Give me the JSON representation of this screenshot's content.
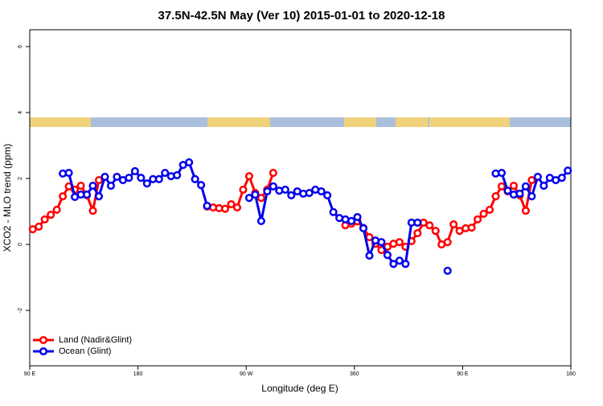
{
  "chart_data": {
    "type": "line",
    "title": "37.5N-42.5N May (Ver 10)   2015-01-01 to 2020-12-18",
    "x_label": "Longitude (deg E)",
    "y_label": "XCO2 - MLO trend (ppm)",
    "xlim": [
      90,
      540
    ],
    "ylim": [
      -3.68,
      6.51
    ],
    "xticks": [
      {
        "value": 90,
        "label": "90 E"
      },
      180,
      {
        "value": 270,
        "label": "90 W"
      },
      360,
      {
        "value": 450,
        "label": "90 E"
      },
      {
        "value": 540,
        "label": "180"
      }
    ],
    "xticks_note_free": null,
    "yticks": [
      6,
      4,
      2,
      0,
      -2
    ],
    "legend_position": "bottom-left",
    "x": [
      92.5,
      97.5,
      102.5,
      107.5,
      112.5,
      117.5,
      122.5,
      127.5,
      132.5,
      137.5,
      142.5,
      147.5,
      152.5,
      157.5,
      162.5,
      167.5,
      172.5,
      177.5,
      182.5,
      187.5,
      192.5,
      197.5,
      202.5,
      207.5,
      212.5,
      217.5,
      222.5,
      227.5,
      232.5,
      237.5,
      242.5,
      247.5,
      252.5,
      257.5,
      262.5,
      267.5,
      272.5,
      277.5,
      282.5,
      287.5,
      292.5,
      297.5,
      302.5,
      307.5,
      312.5,
      317.5,
      322.5,
      327.5,
      332.5,
      337.5,
      342.5,
      347.5,
      352.5,
      357.5,
      362.5,
      367.5,
      372.5,
      377.5,
      382.5,
      387.5,
      392.5,
      397.5,
      402.5,
      407.5,
      412.5,
      417.5,
      422.5,
      427.5,
      432.5,
      437.5,
      442.5,
      447.5,
      452.5,
      457.5,
      462.5,
      467.5,
      472.5,
      477.5,
      482.5,
      487.5,
      492.5,
      497.5,
      502.5,
      507.5,
      512.5,
      517.5,
      522.5,
      527.5,
      532.5,
      537.5
    ],
    "series": [
      {
        "name": "Land (Nadir&Glint)",
        "color": "#ff0000",
        "values": [
          0.46,
          0.54,
          0.76,
          0.9,
          1.05,
          1.46,
          1.76,
          1.66,
          1.78,
          1.49,
          1.02,
          1.95,
          null,
          null,
          null,
          null,
          null,
          null,
          null,
          null,
          null,
          null,
          null,
          null,
          null,
          null,
          null,
          null,
          null,
          1.15,
          1.12,
          1.1,
          1.08,
          1.22,
          1.12,
          1.66,
          2.07,
          1.56,
          1.41,
          1.66,
          2.17,
          null,
          null,
          null,
          null,
          null,
          null,
          null,
          null,
          null,
          null,
          null,
          0.58,
          0.63,
          0.7,
          0.5,
          0.22,
          0.02,
          -0.17,
          -0.07,
          0.02,
          0.07,
          -0.07,
          0.1,
          0.34,
          0.66,
          0.58,
          0.41,
          0.0,
          0.07,
          0.61,
          0.41,
          0.49,
          0.51,
          0.76,
          0.93,
          1.05,
          1.46,
          1.76,
          1.61,
          1.78,
          1.49,
          1.02,
          1.95,
          null,
          null,
          null,
          null,
          null,
          null
        ]
      },
      {
        "name": "Ocean (Glint)",
        "color": "#0000ee",
        "values": [
          null,
          null,
          null,
          null,
          null,
          2.15,
          2.17,
          1.44,
          1.51,
          1.51,
          1.78,
          1.46,
          2.05,
          1.78,
          2.05,
          1.95,
          2.02,
          2.22,
          2.02,
          1.85,
          1.98,
          1.98,
          2.17,
          2.07,
          2.1,
          2.41,
          2.49,
          1.98,
          1.8,
          1.17,
          null,
          null,
          null,
          null,
          null,
          null,
          1.41,
          1.51,
          0.71,
          1.61,
          1.76,
          1.63,
          1.66,
          1.49,
          1.61,
          1.54,
          1.56,
          1.66,
          1.61,
          1.49,
          0.98,
          0.8,
          0.76,
          0.71,
          0.83,
          0.49,
          -0.34,
          0.12,
          0.07,
          -0.32,
          -0.59,
          -0.49,
          -0.59,
          0.66,
          0.66,
          null,
          null,
          null,
          null,
          -0.8,
          null,
          null,
          null,
          null,
          null,
          null,
          null,
          2.15,
          2.17,
          1.63,
          1.51,
          1.54,
          1.76,
          1.46,
          2.05,
          1.78,
          2.02,
          1.95,
          2.02,
          2.24
        ]
      }
    ]
  }
}
